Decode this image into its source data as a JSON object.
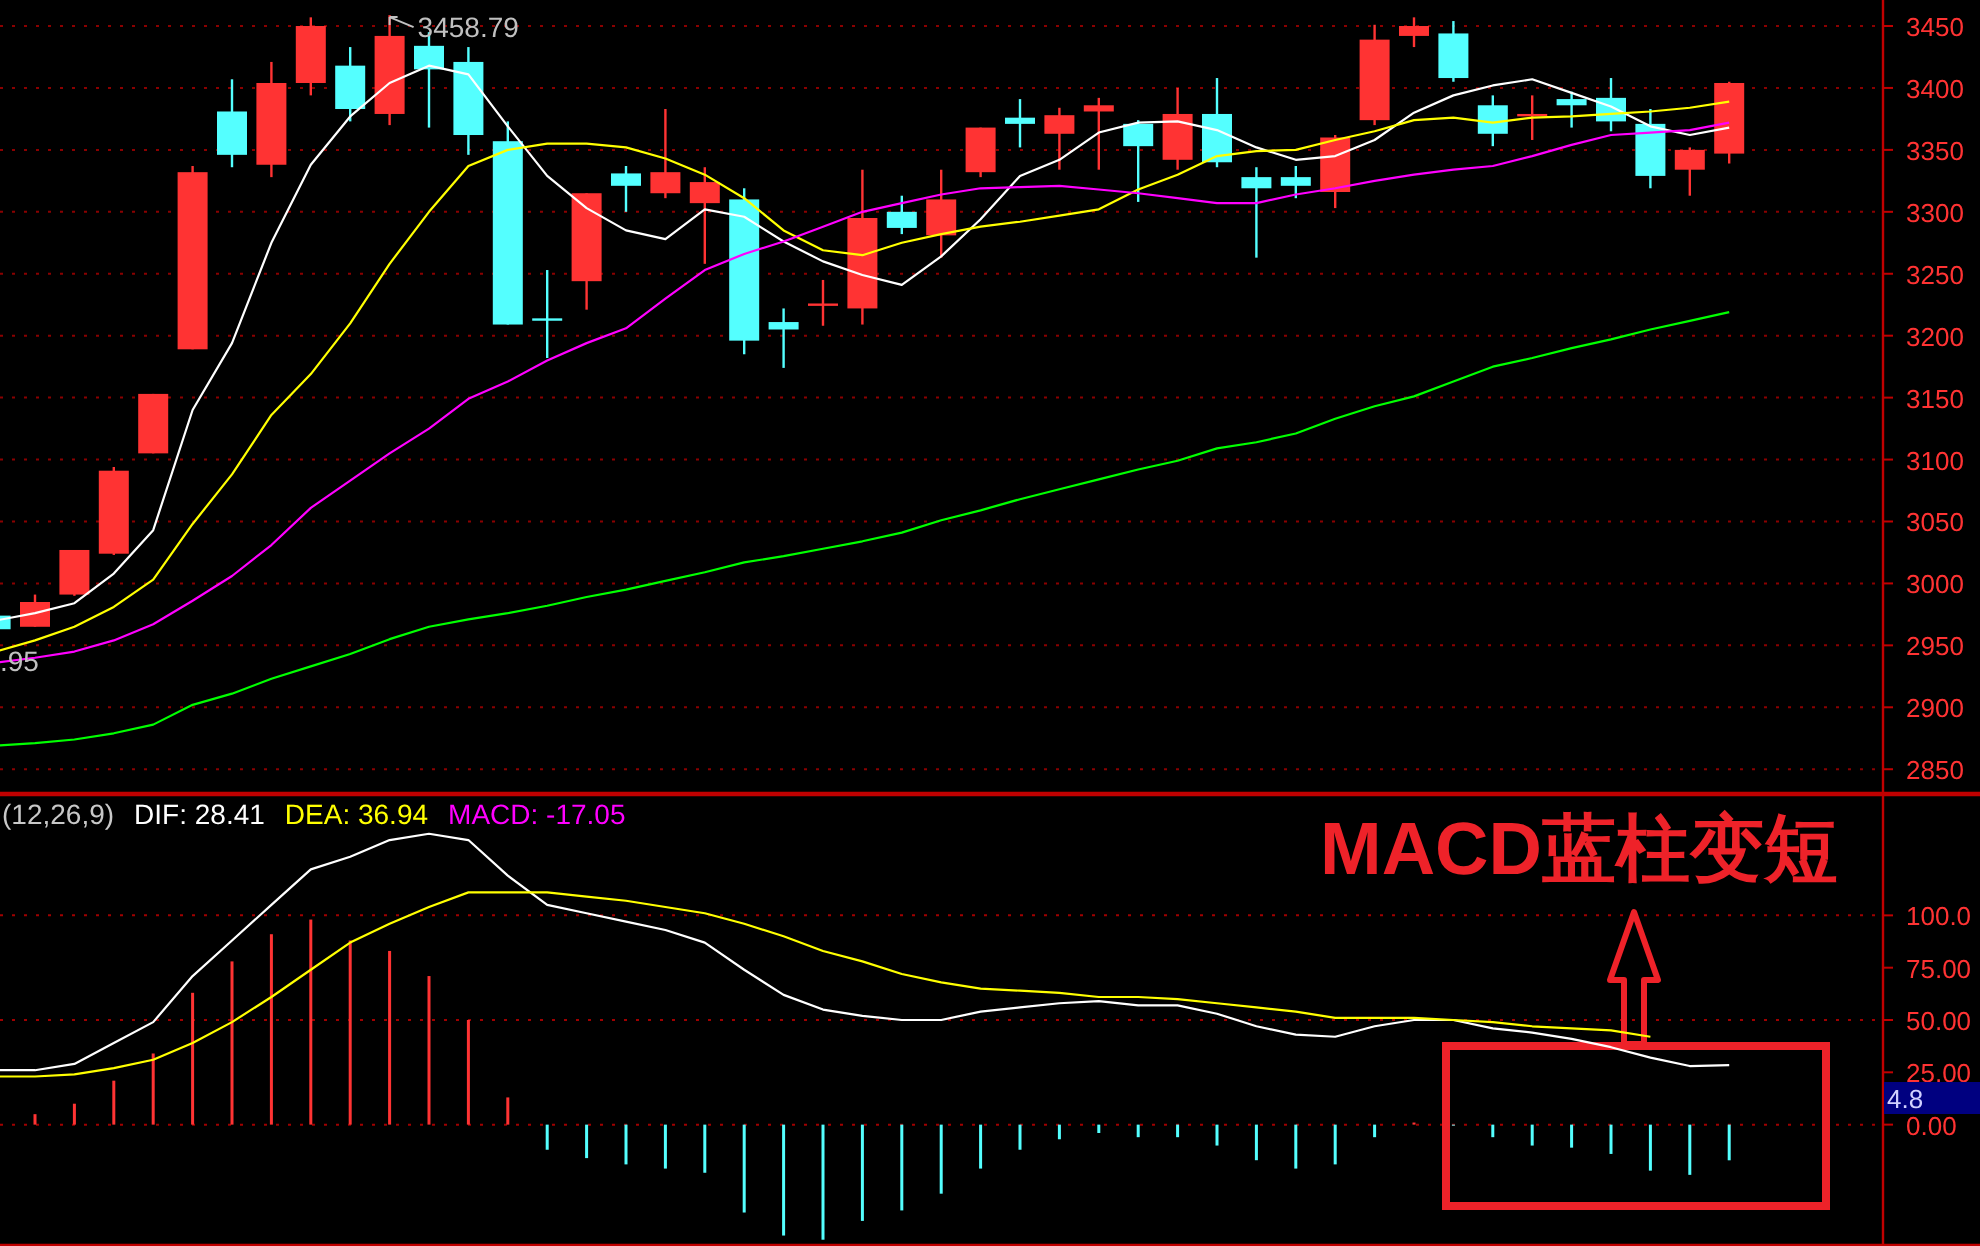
{
  "chart_data": [
    {
      "type": "candlestick",
      "categories": [
        null,
        null,
        null,
        null,
        null,
        null,
        null,
        null,
        null,
        null,
        null,
        null,
        null,
        null,
        null,
        null,
        null,
        null,
        null,
        null,
        null,
        null,
        null,
        null,
        null,
        null,
        null,
        null,
        null,
        null,
        null,
        null,
        null,
        null,
        null,
        null,
        null,
        null,
        null,
        null,
        null,
        null,
        null,
        null,
        null
      ],
      "ohlc": [
        [
          2974,
          2975,
          2960,
          2963
        ],
        [
          2965,
          2991,
          2965,
          2985
        ],
        [
          2991,
          3027,
          2990,
          3027
        ],
        [
          3024,
          3094,
          3023,
          3091
        ],
        [
          3105,
          3153,
          3105,
          3153
        ],
        [
          3189,
          3337,
          3189,
          3332
        ],
        [
          3381,
          3407,
          3336,
          3346
        ],
        [
          3338,
          3421,
          3328,
          3404
        ],
        [
          3404,
          3457,
          3394,
          3450
        ],
        [
          3418,
          3433,
          3373,
          3383
        ],
        [
          3379,
          3458.79,
          3370,
          3442
        ],
        [
          3434,
          3445,
          3368,
          3415
        ],
        [
          3421,
          3433,
          3346,
          3362
        ],
        [
          3357,
          3373,
          3209,
          3209
        ],
        [
          3214,
          3253,
          3182,
          3214
        ],
        [
          3244,
          3315,
          3221,
          3315
        ],
        [
          3331,
          3337,
          3300,
          3321
        ],
        [
          3315,
          3383,
          3311,
          3332
        ],
        [
          3307,
          3336,
          3258,
          3324
        ],
        [
          3310,
          3319,
          3185,
          3196
        ],
        [
          3211,
          3222,
          3174,
          3205
        ],
        [
          3226,
          3245,
          3208,
          3226
        ],
        [
          3222,
          3334,
          3209,
          3295
        ],
        [
          3300,
          3313,
          3282,
          3287
        ],
        [
          3281,
          3334,
          3263,
          3310
        ],
        [
          3332,
          3368,
          3328,
          3368
        ],
        [
          3376,
          3391,
          3352,
          3371
        ],
        [
          3363,
          3384,
          3334,
          3378
        ],
        [
          3381,
          3392,
          3334,
          3386
        ],
        [
          3371,
          3374,
          3308,
          3353
        ],
        [
          3342,
          3400,
          3334,
          3379
        ],
        [
          3379,
          3408,
          3336,
          3340
        ],
        [
          3328,
          3336,
          3263,
          3319
        ],
        [
          3328,
          3337,
          3311,
          3321
        ],
        [
          3316,
          3362,
          3303,
          3360
        ],
        [
          3374,
          3451,
          3370,
          3439
        ],
        [
          3442,
          3457,
          3433,
          3450
        ],
        [
          3444,
          3454,
          3405,
          3408
        ],
        [
          3386,
          3394,
          3353,
          3363
        ],
        [
          3379,
          3394,
          3358,
          3379
        ],
        [
          3391,
          3397,
          3368,
          3386
        ],
        [
          3392,
          3408,
          3365,
          3373
        ],
        [
          3371,
          3383,
          3319,
          3329
        ],
        [
          3334,
          3352,
          3313,
          3350
        ],
        [
          3347,
          3405,
          3339,
          3404
        ]
      ],
      "colors": [
        "#54ffff",
        "#ff3333",
        "#ff3333",
        "#ff3333",
        "#ff3333",
        "#ff3333",
        "#54ffff",
        "#ff3333",
        "#ff3333",
        "#54ffff",
        "#ff3333",
        "#54ffff",
        "#54ffff",
        "#54ffff",
        "#54ffff",
        "#ff3333",
        "#54ffff",
        "#ff3333",
        "#ff3333",
        "#54ffff",
        "#54ffff",
        "#ff3333",
        "#ff3333",
        "#54ffff",
        "#ff3333",
        "#ff3333",
        "#54ffff",
        "#ff3333",
        "#ff3333",
        "#54ffff",
        "#ff3333",
        "#54ffff",
        "#54ffff",
        "#54ffff",
        "#ff3333",
        "#ff3333",
        "#ff3333",
        "#54ffff",
        "#54ffff",
        "#ff3333",
        "#54ffff",
        "#54ffff",
        "#54ffff",
        "#ff3333",
        "#ff3333"
      ],
      "series": [
        {
          "type": "line",
          "color": "#ffffff",
          "values": [
            2970,
            2976,
            2984,
            3008,
            3043,
            3140,
            3194,
            3275,
            3338,
            3377,
            3404,
            3418,
            3411,
            3369,
            3329,
            3303,
            3285,
            3278,
            3302,
            3296,
            3276,
            3260,
            3249,
            3241,
            3264,
            3294,
            3329,
            3342,
            3364,
            3372,
            3373,
            3366,
            3352,
            3342,
            3345,
            3358,
            3380,
            3394,
            3402,
            3407,
            3396,
            3385,
            3369,
            3362,
            3368
          ]
        },
        {
          "type": "line",
          "color": "#ffff00",
          "values": [
            2945,
            2954,
            2965,
            2981,
            3003,
            3048,
            3088,
            3136,
            3169,
            3210,
            3258,
            3300,
            3337,
            3350,
            3355,
            3355,
            3352,
            3343,
            3330,
            3311,
            3285,
            3269,
            3265,
            3275,
            3282,
            3288,
            3292,
            3297,
            3302,
            3318,
            3330,
            3345,
            3349,
            3350,
            3358,
            3365,
            3374,
            3376,
            3372,
            3376,
            3377,
            3379,
            3381,
            3384,
            3389
          ]
        },
        {
          "type": "line",
          "color": "#ff00ff",
          "values": [
            2936,
            2940,
            2945,
            2954,
            2967,
            2986,
            3006,
            3031,
            3061,
            3083,
            3105,
            3125,
            3149,
            3163,
            3180,
            3194,
            3206,
            3230,
            3253,
            3266,
            3276,
            3288,
            3300,
            3307,
            3314,
            3319,
            3320,
            3321,
            3318,
            3315,
            3311,
            3307,
            3307,
            3314,
            3319,
            3325,
            3330,
            3334,
            3337,
            3345,
            3354,
            3362,
            3364,
            3366,
            3372
          ]
        },
        {
          "type": "line",
          "color": "#00ff00",
          "values": [
            2869,
            2871,
            2874,
            2879,
            2886,
            2902,
            2911,
            2923,
            2933,
            2943,
            2955,
            2965,
            2971,
            2976,
            2982,
            2989,
            2995,
            3002,
            3009,
            3017,
            3022,
            3028,
            3034,
            3041,
            3051,
            3059,
            3068,
            3076,
            3084,
            3092,
            3099,
            3109,
            3114,
            3121,
            3133,
            3143,
            3151,
            3163,
            3175,
            3182,
            3190,
            3197,
            3205,
            3212,
            3219
          ]
        }
      ],
      "ylim": [
        2830,
        3471
      ],
      "yticks": [
        2850,
        2900,
        2950,
        3000,
        3050,
        3100,
        3150,
        3200,
        3250,
        3300,
        3350,
        3400,
        3450
      ],
      "grid": "y",
      "tick_labels": "y",
      "annotations": [
        "3458.79",
        ".95"
      ]
    },
    {
      "type": "bar",
      "title": "(12,26,9)",
      "categories": [
        null,
        null,
        null,
        null,
        null,
        null,
        null,
        null,
        null,
        null,
        null,
        null,
        null,
        null,
        null,
        null,
        null,
        null,
        null,
        null,
        null,
        null,
        null,
        null,
        null,
        null,
        null,
        null,
        null,
        null,
        null,
        null,
        null,
        null,
        null,
        null,
        null,
        null,
        null,
        null,
        null,
        null,
        null,
        null,
        null
      ],
      "series": [
        {
          "name": "DIF: 28.41",
          "type": "line",
          "color": "#ffffff",
          "values": [
            26,
            26,
            29,
            39,
            49,
            71,
            88,
            105,
            122,
            128,
            136,
            139,
            136,
            119,
            105,
            101,
            97,
            93,
            87,
            74,
            62,
            55,
            52,
            50,
            50,
            54,
            56,
            58,
            59,
            57,
            57,
            53,
            47,
            43,
            42,
            47,
            50,
            50,
            46,
            44,
            41,
            37,
            32,
            28,
            28.41
          ]
        },
        {
          "name": "DEA: 36.94",
          "type": "line",
          "color": "#ffff00",
          "values": [
            23,
            23,
            24,
            27,
            31,
            39,
            49,
            61,
            74,
            87,
            96,
            104,
            111,
            111,
            111,
            109,
            107,
            104,
            101,
            96,
            90,
            83,
            78,
            72,
            68,
            65,
            64,
            63,
            61,
            61,
            60,
            58,
            56,
            54,
            51,
            51,
            51,
            50,
            49,
            47,
            46,
            45,
            42,
            null,
            null
          ]
        },
        {
          "type": "bar",
          "color": "#ff00ff",
          "colors": [
            null,
            "#ff3333",
            "#ff3333",
            "#ff3333",
            "#ff3333",
            "#ff3333",
            "#ff3333",
            "#ff3333",
            "#ff3333",
            "#ff3333",
            "#ff3333",
            "#ff3333",
            "#ff3333",
            "#ff3333",
            "#54ffff",
            "#54ffff",
            "#54ffff",
            "#54ffff",
            "#54ffff",
            "#54ffff",
            "#54ffff",
            "#54ffff",
            "#54ffff",
            "#54ffff",
            "#54ffff",
            "#54ffff",
            "#54ffff",
            "#54ffff",
            "#54ffff",
            "#54ffff",
            "#54ffff",
            "#54ffff",
            "#54ffff",
            "#54ffff",
            "#54ffff",
            "#54ffff",
            "#ff3333",
            "#54ffff",
            "#54ffff",
            "#54ffff",
            "#54ffff",
            "#54ffff",
            "#54ffff",
            "#54ffff",
            "#54ffff"
          ],
          "values": [
            null,
            5,
            10,
            21,
            34,
            63,
            78,
            91,
            98,
            88,
            83,
            71,
            50,
            13,
            -12,
            -16,
            -19,
            -21,
            -23,
            -42,
            -53,
            -55,
            -46,
            -41,
            -33,
            -21,
            -12,
            -7,
            -4,
            -6,
            -6,
            -10,
            -17,
            -21,
            -19,
            -6,
            1,
            0,
            -6,
            -10,
            -11,
            -14,
            -22,
            -24,
            -17.05
          ]
        }
      ],
      "ylim": [
        -58,
        158
      ],
      "yticks": [
        {
          "value": 0,
          "label": "0.00"
        },
        {
          "value": 25,
          "label": "25.00"
        },
        {
          "value": 50,
          "label": "50.00"
        },
        {
          "value": 75,
          "label": "75.00"
        },
        {
          "value": 100,
          "label": "100.0"
        }
      ],
      "ref_lines": [
        {
          "axis": "y",
          "value": 0,
          "color": "#a00000",
          "line_style": "dotted"
        },
        {
          "axis": "y",
          "value": 50,
          "color": "#a00000",
          "line_style": "dotted"
        },
        {
          "axis": "y",
          "value": 100,
          "color": "#a00000",
          "line_style": "dotted"
        }
      ],
      "tick_labels": "y",
      "annotations": [
        "MACD蓝柱变短",
        "4.8",
        "MACD: -17.05"
      ]
    }
  ]
}
